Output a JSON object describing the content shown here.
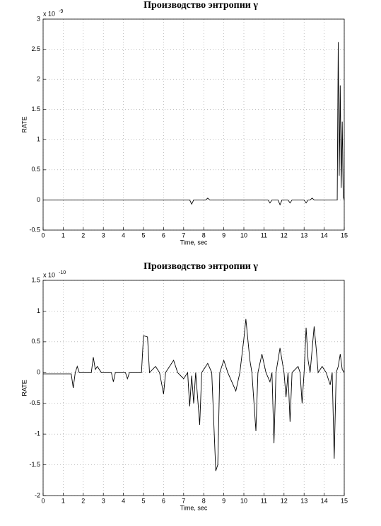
{
  "chart_data": [
    {
      "type": "line",
      "title": "Производство энтропии γ",
      "xlabel": "Time, sec",
      "ylabel": "RATE",
      "y_multiplier": "x 10",
      "y_multiplier_exp": "-9",
      "color": "#000000",
      "grid": true,
      "xlim": [
        0,
        15
      ],
      "xticks": [
        0,
        1,
        2,
        3,
        4,
        5,
        6,
        7,
        8,
        9,
        10,
        11,
        12,
        13,
        14,
        15
      ],
      "ylim": [
        -0.5,
        3
      ],
      "yticks": [
        -0.5,
        0,
        0.5,
        1,
        1.5,
        2,
        2.5,
        3
      ],
      "x": [
        0,
        7.3,
        7.4,
        7.5,
        8.1,
        8.2,
        8.3,
        11.2,
        11.3,
        11.4,
        11.7,
        11.8,
        11.9,
        12.2,
        12.3,
        12.4,
        13.0,
        13.1,
        13.2,
        13.3,
        13.4,
        13.5,
        14.65,
        14.7,
        14.75,
        14.8,
        14.85,
        14.9,
        14.95,
        15
      ],
      "values": [
        0,
        0,
        -0.07,
        0,
        0,
        0.03,
        0,
        0,
        -0.05,
        0,
        0,
        -0.08,
        0,
        0,
        -0.05,
        0,
        0,
        -0.05,
        0,
        0,
        0.03,
        0,
        0,
        2.62,
        0.4,
        1.9,
        0.2,
        1.3,
        0.05,
        0
      ]
    },
    {
      "type": "line",
      "title": "Производство энтропии γ",
      "xlabel": "Time, sec",
      "ylabel": "RATE",
      "y_multiplier": "x 10",
      "y_multiplier_exp": "-10",
      "color": "#000000",
      "grid": true,
      "xlim": [
        0,
        15
      ],
      "xticks": [
        0,
        1,
        2,
        3,
        4,
        5,
        6,
        7,
        8,
        9,
        10,
        11,
        12,
        13,
        14,
        15
      ],
      "ylim": [
        -2,
        1.5
      ],
      "yticks": [
        -2,
        -1.5,
        -1,
        -0.5,
        0,
        0.5,
        1,
        1.5
      ],
      "x": [
        0,
        1.4,
        1.5,
        1.6,
        1.7,
        1.8,
        2.4,
        2.5,
        2.6,
        2.7,
        2.9,
        3.4,
        3.5,
        3.6,
        4.1,
        4.2,
        4.3,
        4.9,
        5.0,
        5.2,
        5.3,
        5.6,
        5.8,
        6.0,
        6.1,
        6.5,
        6.7,
        7.0,
        7.2,
        7.3,
        7.4,
        7.5,
        7.6,
        7.8,
        7.9,
        8.2,
        8.4,
        8.6,
        8.7,
        8.8,
        9.0,
        9.2,
        9.6,
        9.8,
        10.0,
        10.1,
        10.3,
        10.4,
        10.6,
        10.7,
        10.9,
        11.1,
        11.3,
        11.4,
        11.5,
        11.6,
        11.8,
        12.0,
        12.1,
        12.2,
        12.3,
        12.4,
        12.7,
        12.8,
        12.9,
        13.0,
        13.1,
        13.2,
        13.3,
        13.5,
        13.6,
        13.7,
        13.9,
        14.1,
        14.3,
        14.4,
        14.5,
        14.6,
        14.7,
        14.8,
        14.9,
        15
      ],
      "values": [
        -0.02,
        -0.02,
        -0.25,
        0,
        0.1,
        0,
        0,
        0.25,
        0.05,
        0.1,
        0,
        0,
        -0.15,
        0,
        0,
        -0.1,
        0,
        0,
        0.6,
        0.58,
        0,
        0.1,
        0,
        -0.35,
        0,
        0.2,
        0,
        -0.1,
        0,
        -0.55,
        -0.05,
        -0.5,
        0,
        -0.85,
        0,
        0.15,
        0,
        -1.6,
        -1.5,
        0,
        0.2,
        0,
        -0.3,
        0,
        0.55,
        0.87,
        0.2,
        0,
        -0.95,
        0,
        0.3,
        0,
        -0.15,
        0,
        -1.15,
        0,
        0.4,
        0,
        -0.4,
        0,
        -0.8,
        0,
        0.1,
        0,
        -0.5,
        0,
        0.73,
        0.2,
        0,
        0.75,
        0.4,
        0,
        0.1,
        0,
        -0.2,
        0,
        -1.4,
        0,
        0.1,
        0.3,
        0.05,
        0
      ]
    }
  ]
}
